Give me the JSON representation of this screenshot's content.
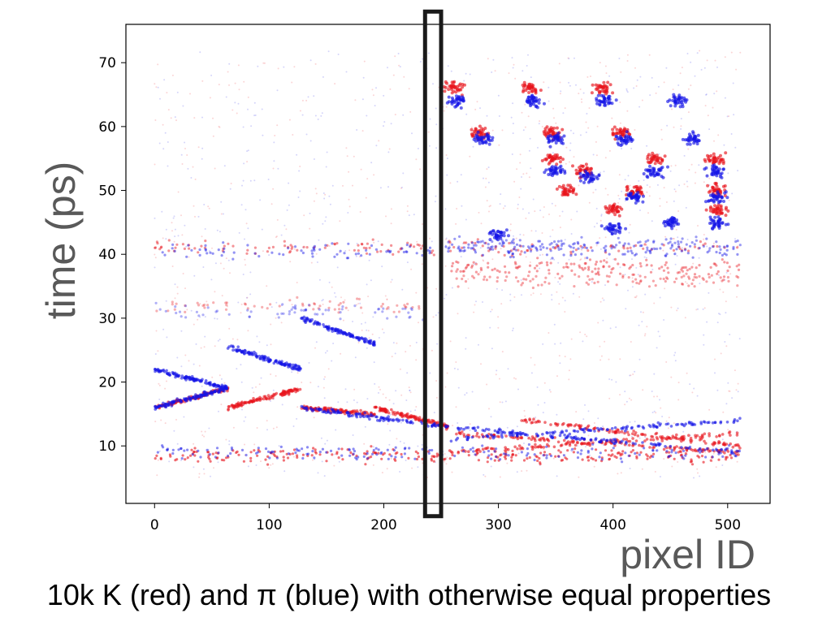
{
  "chart_data": {
    "type": "scatter",
    "xlabel": "pixel ID",
    "ylabel": "time (ps)",
    "xlim": [
      -25,
      537
    ],
    "ylim": [
      1,
      76
    ],
    "x_ticks": [
      0,
      100,
      200,
      300,
      400,
      500
    ],
    "y_ticks": [
      10,
      20,
      30,
      40,
      50,
      60,
      70
    ],
    "grid": false,
    "series": [
      {
        "color": "#e8141c",
        "bands": [
          {
            "y": 8.5,
            "x": [
              0,
              511
            ],
            "weight": 1.0
          },
          {
            "y": 41,
            "x": [
              0,
              511
            ],
            "weight": 0.6
          },
          {
            "y": 38,
            "x": [
              256,
              511
            ],
            "weight": 0.5
          },
          {
            "y": 36,
            "x": [
              256,
              511
            ],
            "weight": 0.4
          },
          {
            "y": 32,
            "x": [
              0,
              240
            ],
            "weight": 0.25
          }
        ],
        "segments": [
          {
            "x": [
              0,
              64
            ],
            "y": [
              16,
              19
            ]
          },
          {
            "x": [
              64,
              128
            ],
            "y": [
              16,
              19
            ]
          },
          {
            "x": [
              128,
              192
            ],
            "y": [
              16,
              15
            ]
          },
          {
            "x": [
              192,
              256
            ],
            "y": [
              16,
              13
            ]
          },
          {
            "x": [
              256,
              511
            ],
            "y": [
              9,
              12
            ]
          },
          {
            "x": [
              256,
              511
            ],
            "y": [
              12,
              9
            ]
          },
          {
            "x": [
              320,
              511
            ],
            "y": [
              14,
              10
            ]
          }
        ],
        "blobs": [
          {
            "x": 262,
            "y": 66
          },
          {
            "x": 284,
            "y": 59
          },
          {
            "x": 327,
            "y": 66
          },
          {
            "x": 346,
            "y": 59
          },
          {
            "x": 391,
            "y": 66
          },
          {
            "x": 407,
            "y": 59
          },
          {
            "x": 348,
            "y": 55
          },
          {
            "x": 375,
            "y": 53
          },
          {
            "x": 420,
            "y": 50
          },
          {
            "x": 437,
            "y": 55
          },
          {
            "x": 490,
            "y": 55
          },
          {
            "x": 490,
            "y": 50
          },
          {
            "x": 490,
            "y": 47
          },
          {
            "x": 400,
            "y": 47
          },
          {
            "x": 360,
            "y": 50
          }
        ]
      },
      {
        "color": "#1414e6",
        "bands": [
          {
            "y": 9,
            "x": [
              0,
              511
            ],
            "weight": 0.7
          },
          {
            "y": 40.5,
            "x": [
              0,
              511
            ],
            "weight": 0.6
          },
          {
            "y": 41.5,
            "x": [
              256,
              511
            ],
            "weight": 0.5
          },
          {
            "y": 31,
            "x": [
              0,
              240
            ],
            "weight": 0.25
          }
        ],
        "segments": [
          {
            "x": [
              0,
              64
            ],
            "y": [
              22,
              19
            ]
          },
          {
            "x": [
              64,
              128
            ],
            "y": [
              25.5,
              22
            ]
          },
          {
            "x": [
              128,
              192
            ],
            "y": [
              30,
              26
            ]
          },
          {
            "x": [
              0,
              64
            ],
            "y": [
              16,
              19
            ]
          },
          {
            "x": [
              128,
              256
            ],
            "y": [
              16,
              13
            ]
          },
          {
            "x": [
              256,
              511
            ],
            "y": [
              11,
              14
            ]
          },
          {
            "x": [
              256,
              511
            ],
            "y": [
              13,
              9
            ]
          }
        ],
        "blobs": [
          {
            "x": 264,
            "y": 64
          },
          {
            "x": 287,
            "y": 58
          },
          {
            "x": 330,
            "y": 64
          },
          {
            "x": 350,
            "y": 58
          },
          {
            "x": 393,
            "y": 64
          },
          {
            "x": 410,
            "y": 58
          },
          {
            "x": 457,
            "y": 64
          },
          {
            "x": 470,
            "y": 58
          },
          {
            "x": 350,
            "y": 53
          },
          {
            "x": 380,
            "y": 52
          },
          {
            "x": 420,
            "y": 49
          },
          {
            "x": 437,
            "y": 53
          },
          {
            "x": 490,
            "y": 53
          },
          {
            "x": 490,
            "y": 49
          },
          {
            "x": 490,
            "y": 45
          },
          {
            "x": 450,
            "y": 45
          },
          {
            "x": 400,
            "y": 44
          },
          {
            "x": 300,
            "y": 43
          }
        ]
      }
    ],
    "highlight_box": {
      "x": [
        236,
        250
      ],
      "y": [
        -1,
        78
      ]
    }
  },
  "caption": "10k K (red) and π (blue) with otherwise equal properties"
}
